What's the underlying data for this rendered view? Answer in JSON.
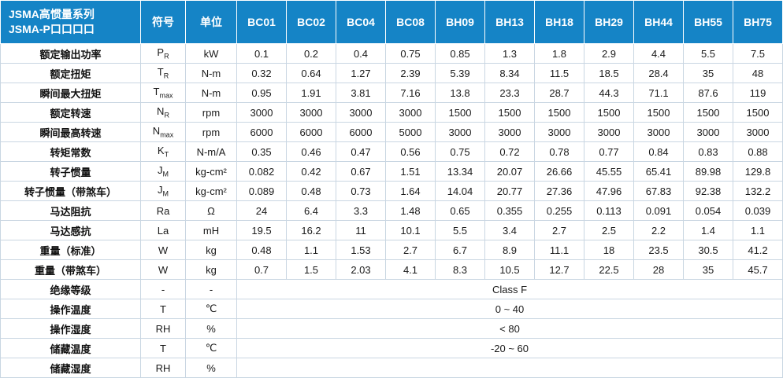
{
  "table": {
    "header": {
      "title_line1": "JSMA高惯量系列",
      "title_line2": "JSMA-P口口口口",
      "symbol_label": "符号",
      "unit_label": "单位",
      "models": [
        "BC01",
        "BC02",
        "BC04",
        "BC08",
        "BH09",
        "BH13",
        "BH18",
        "BH29",
        "BH44",
        "BH55",
        "BH75"
      ]
    },
    "rows": [
      {
        "label": "额定输出功率",
        "sym": {
          "base": "P",
          "sub": "R"
        },
        "unit": "kW",
        "values": [
          "0.1",
          "0.2",
          "0.4",
          "0.75",
          "0.85",
          "1.3",
          "1.8",
          "2.9",
          "4.4",
          "5.5",
          "7.5"
        ]
      },
      {
        "label": "额定扭矩",
        "sym": {
          "base": "T",
          "sub": "R"
        },
        "unit": "N-m",
        "values": [
          "0.32",
          "0.64",
          "1.27",
          "2.39",
          "5.39",
          "8.34",
          "11.5",
          "18.5",
          "28.4",
          "35",
          "48"
        ]
      },
      {
        "label": "瞬间最大扭矩",
        "sym": {
          "base": "T",
          "sub": "max"
        },
        "unit": "N-m",
        "values": [
          "0.95",
          "1.91",
          "3.81",
          "7.16",
          "13.8",
          "23.3",
          "28.7",
          "44.3",
          "71.1",
          "87.6",
          "119"
        ]
      },
      {
        "label": "额定转速",
        "sym": {
          "base": "N",
          "sub": "R"
        },
        "unit": "rpm",
        "values": [
          "3000",
          "3000",
          "3000",
          "3000",
          "1500",
          "1500",
          "1500",
          "1500",
          "1500",
          "1500",
          "1500"
        ]
      },
      {
        "label": "瞬间最高转速",
        "sym": {
          "base": "N",
          "sub": "max"
        },
        "unit": "rpm",
        "values": [
          "6000",
          "6000",
          "6000",
          "5000",
          "3000",
          "3000",
          "3000",
          "3000",
          "3000",
          "3000",
          "3000"
        ]
      },
      {
        "label": "转矩常数",
        "sym": {
          "base": "K",
          "sub": "T"
        },
        "unit": "N-m/A",
        "values": [
          "0.35",
          "0.46",
          "0.47",
          "0.56",
          "0.75",
          "0.72",
          "0.78",
          "0.77",
          "0.84",
          "0.83",
          "0.88"
        ]
      },
      {
        "label": "转子惯量",
        "sym": {
          "base": "J",
          "sub": "M"
        },
        "unit": "kg-cm²",
        "values": [
          "0.082",
          "0.42",
          "0.67",
          "1.51",
          "13.34",
          "20.07",
          "26.66",
          "45.55",
          "65.41",
          "89.98",
          "129.8"
        ]
      },
      {
        "label": "转子惯量（带煞车）",
        "sym": {
          "base": "J",
          "sub": "M"
        },
        "unit": "kg-cm²",
        "values": [
          "0.089",
          "0.48",
          "0.73",
          "1.64",
          "14.04",
          "20.77",
          "27.36",
          "47.96",
          "67.83",
          "92.38",
          "132.2"
        ]
      },
      {
        "label": "马达阻抗",
        "sym": {
          "base": "Ra",
          "sub": ""
        },
        "unit": "Ω",
        "values": [
          "24",
          "6.4",
          "3.3",
          "1.48",
          "0.65",
          "0.355",
          "0.255",
          "0.113",
          "0.091",
          "0.054",
          "0.039"
        ]
      },
      {
        "label": "马达感抗",
        "sym": {
          "base": "La",
          "sub": ""
        },
        "unit": "mH",
        "values": [
          "19.5",
          "16.2",
          "11",
          "10.1",
          "5.5",
          "3.4",
          "2.7",
          "2.5",
          "2.2",
          "1.4",
          "1.1"
        ]
      },
      {
        "label": "重量（标准）",
        "sym": {
          "base": "W",
          "sub": ""
        },
        "unit": "kg",
        "values": [
          "0.48",
          "1.1",
          "1.53",
          "2.7",
          "6.7",
          "8.9",
          "11.1",
          "18",
          "23.5",
          "30.5",
          "41.2"
        ]
      },
      {
        "label": "重量（带煞车）",
        "sym": {
          "base": "W",
          "sub": ""
        },
        "unit": "kg",
        "values": [
          "0.7",
          "1.5",
          "2.03",
          "4.1",
          "8.3",
          "10.5",
          "12.7",
          "22.5",
          "28",
          "35",
          "45.7"
        ]
      }
    ],
    "span_rows": [
      {
        "label": "绝缘等级",
        "sym": "-",
        "unit": "-",
        "value": "Class F"
      },
      {
        "label": "操作温度",
        "sym": "T",
        "unit": "℃",
        "value": "0 ~ 40"
      },
      {
        "label": "操作湿度",
        "sym": "RH",
        "unit": "%",
        "value": "< 80"
      },
      {
        "label": "储藏温度",
        "sym": "T",
        "unit": "℃",
        "value": "-20 ~ 60"
      },
      {
        "label": "储藏湿度",
        "sym": "RH",
        "unit": "%",
        "value": ""
      }
    ]
  }
}
